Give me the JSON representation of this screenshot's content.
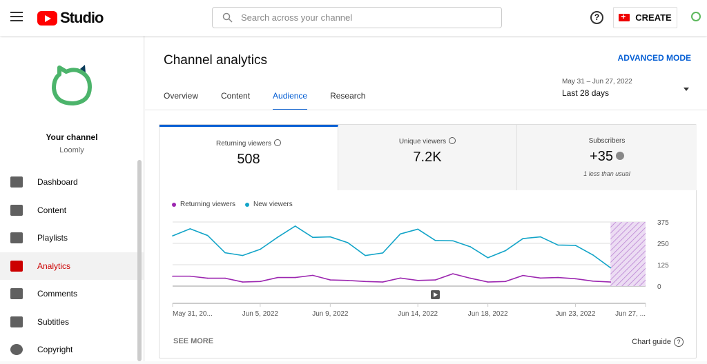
{
  "header": {
    "app_name": "Studio",
    "search_placeholder": "Search across your channel",
    "help": "?",
    "create_label": "CREATE"
  },
  "sidebar": {
    "channel_title": "Your channel",
    "channel_name": "Loomly",
    "items": [
      {
        "label": "Dashboard",
        "icon": "dashboard-icon"
      },
      {
        "label": "Content",
        "icon": "content-icon"
      },
      {
        "label": "Playlists",
        "icon": "playlists-icon"
      },
      {
        "label": "Analytics",
        "icon": "analytics-icon",
        "active": true
      },
      {
        "label": "Comments",
        "icon": "comments-icon"
      },
      {
        "label": "Subtitles",
        "icon": "subtitles-icon"
      },
      {
        "label": "Copyright",
        "icon": "copyright-icon"
      }
    ]
  },
  "main": {
    "title": "Channel analytics",
    "advanced_mode": "ADVANCED MODE",
    "tabs": [
      {
        "label": "Overview"
      },
      {
        "label": "Content"
      },
      {
        "label": "Audience",
        "active": true
      },
      {
        "label": "Research"
      }
    ],
    "date_range": "May 31 – Jun 27, 2022",
    "date_preset": "Last 28 days",
    "metrics": [
      {
        "label": "Returning viewers",
        "value": "508"
      },
      {
        "label": "Unique viewers",
        "value": "7.2K"
      },
      {
        "label": "Subscribers",
        "value": "+35",
        "note": "1 less than usual"
      }
    ],
    "see_more": "SEE MORE",
    "chart_guide": "Chart guide",
    "chart_guide_icon": "?"
  },
  "colors": {
    "accent": "#065fd4",
    "returning": "#9c27b0",
    "new": "#12a4c8",
    "brand": "#ff0000"
  },
  "chart_data": {
    "type": "line",
    "legend_position": "top-left",
    "grid": true,
    "x_ticks": [
      "May 31, 20...",
      "Jun 5, 2022",
      "Jun 9, 2022",
      "Jun 14, 2022",
      "Jun 18, 2022",
      "Jun 23, 2022",
      "Jun 27, ..."
    ],
    "x_tick_index": [
      0,
      5,
      9,
      14,
      18,
      23,
      27
    ],
    "x_range": [
      "May 31, 2022",
      "Jun 27, 2022"
    ],
    "ylim": [
      0,
      375
    ],
    "y_ticks": [
      0,
      125,
      250,
      375
    ],
    "incomplete_period": [
      "Jun 25, 2022",
      "Jun 27, 2022"
    ],
    "series": [
      {
        "name": "Returning viewers",
        "values": [
          58,
          58,
          46,
          46,
          24,
          27,
          50,
          50,
          63,
          36,
          33,
          27,
          24,
          47,
          33,
          36,
          72,
          46,
          24,
          27,
          62,
          47,
          50,
          43,
          29,
          24
        ]
      },
      {
        "name": "New viewers",
        "values": [
          294,
          335,
          296,
          195,
          179,
          215,
          286,
          351,
          285,
          288,
          254,
          179,
          194,
          305,
          333,
          267,
          265,
          230,
          166,
          207,
          278,
          288,
          240,
          238,
          182,
          107
        ]
      }
    ]
  }
}
